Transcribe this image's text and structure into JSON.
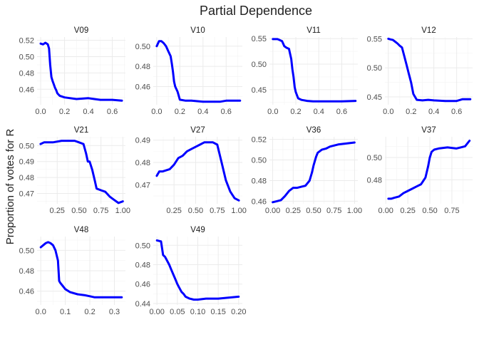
{
  "chart_data": {
    "type": "line",
    "title": "Partial Dependence",
    "ylabel": "Proportion of votes for R",
    "xlabel": "",
    "line_color": "#0000ff",
    "grid": true,
    "panels": [
      {
        "name": "V09",
        "xlim": [
          -0.03,
          0.71
        ],
        "ylim": [
          0.441,
          0.524
        ],
        "xticks": [
          0.0,
          0.2,
          0.4,
          0.6
        ],
        "xtick_labels": [
          "0.0",
          "0.2",
          "0.4",
          "0.6"
        ],
        "yticks": [
          0.46,
          0.48,
          0.5,
          0.52
        ],
        "ytick_labels": [
          "0.46",
          "0.48",
          "0.50",
          "0.52"
        ],
        "x": [
          0.0,
          0.02,
          0.04,
          0.06,
          0.07,
          0.08,
          0.09,
          0.1,
          0.11,
          0.12,
          0.13,
          0.14,
          0.16,
          0.2,
          0.3,
          0.4,
          0.45,
          0.5,
          0.6,
          0.68
        ],
        "y": [
          0.516,
          0.515,
          0.517,
          0.515,
          0.51,
          0.49,
          0.475,
          0.47,
          0.466,
          0.462,
          0.459,
          0.455,
          0.452,
          0.45,
          0.448,
          0.449,
          0.448,
          0.447,
          0.447,
          0.446
        ]
      },
      {
        "name": "V10",
        "xlim": [
          -0.03,
          0.74
        ],
        "ylim": [
          0.442,
          0.509
        ],
        "xticks": [
          0.0,
          0.2,
          0.4,
          0.6
        ],
        "xtick_labels": [
          "0.0",
          "0.2",
          "0.4",
          "0.6"
        ],
        "yticks": [
          0.46,
          0.48,
          0.5
        ],
        "ytick_labels": [
          "0.46",
          "0.48",
          "0.50"
        ],
        "x": [
          0.0,
          0.02,
          0.04,
          0.06,
          0.08,
          0.1,
          0.12,
          0.13,
          0.14,
          0.15,
          0.16,
          0.18,
          0.2,
          0.25,
          0.3,
          0.4,
          0.5,
          0.55,
          0.6,
          0.72
        ],
        "y": [
          0.5,
          0.505,
          0.505,
          0.503,
          0.5,
          0.495,
          0.49,
          0.483,
          0.475,
          0.465,
          0.46,
          0.455,
          0.447,
          0.446,
          0.446,
          0.445,
          0.445,
          0.445,
          0.446,
          0.446
        ]
      },
      {
        "name": "V11",
        "xlim": [
          -0.03,
          0.74
        ],
        "ylim": [
          0.4205,
          0.553
        ],
        "xticks": [
          0.0,
          0.2,
          0.4,
          0.6
        ],
        "xtick_labels": [
          "0.0",
          "0.2",
          "0.4",
          "0.6"
        ],
        "yticks": [
          0.45,
          0.5,
          0.55
        ],
        "ytick_labels": [
          "0.45",
          "0.50",
          "0.55"
        ],
        "x": [
          0.0,
          0.04,
          0.06,
          0.08,
          0.1,
          0.12,
          0.14,
          0.16,
          0.17,
          0.18,
          0.19,
          0.2,
          0.22,
          0.25,
          0.3,
          0.35,
          0.4,
          0.5,
          0.6,
          0.72
        ],
        "y": [
          0.549,
          0.549,
          0.547,
          0.545,
          0.535,
          0.532,
          0.53,
          0.51,
          0.49,
          0.475,
          0.455,
          0.445,
          0.433,
          0.43,
          0.428,
          0.427,
          0.427,
          0.427,
          0.427,
          0.428
        ]
      },
      {
        "name": "V12",
        "xlim": [
          -0.03,
          0.74
        ],
        "ylim": [
          0.4365,
          0.553
        ],
        "xticks": [
          0.0,
          0.2,
          0.4,
          0.6
        ],
        "xtick_labels": [
          "0.0",
          "0.2",
          "0.4",
          "0.6"
        ],
        "yticks": [
          0.45,
          0.5,
          0.55
        ],
        "ytick_labels": [
          "0.45",
          "0.50",
          "0.55"
        ],
        "x": [
          0.0,
          0.02,
          0.04,
          0.06,
          0.08,
          0.1,
          0.12,
          0.14,
          0.16,
          0.18,
          0.2,
          0.22,
          0.25,
          0.3,
          0.35,
          0.4,
          0.5,
          0.6,
          0.65,
          0.72
        ],
        "y": [
          0.55,
          0.549,
          0.548,
          0.545,
          0.542,
          0.538,
          0.535,
          0.52,
          0.505,
          0.49,
          0.475,
          0.455,
          0.445,
          0.444,
          0.445,
          0.444,
          0.443,
          0.443,
          0.446,
          0.446
        ]
      },
      {
        "name": "V21",
        "xlim": [
          0.02,
          1.03
        ],
        "ylim": [
          0.4635,
          0.5055
        ],
        "xticks": [
          0.25,
          0.5,
          0.75,
          1.0
        ],
        "xtick_labels": [
          "0.25",
          "0.50",
          "0.75",
          "1.00"
        ],
        "yticks": [
          0.47,
          0.48,
          0.49,
          0.5
        ],
        "ytick_labels": [
          "0.47",
          "0.48",
          "0.49",
          "0.50"
        ],
        "x": [
          0.06,
          0.1,
          0.2,
          0.3,
          0.4,
          0.45,
          0.5,
          0.55,
          0.58,
          0.6,
          0.62,
          0.65,
          0.68,
          0.7,
          0.75,
          0.8,
          0.85,
          0.9,
          0.95,
          1.0
        ],
        "y": [
          0.501,
          0.502,
          0.502,
          0.503,
          0.503,
          0.503,
          0.502,
          0.501,
          0.495,
          0.49,
          0.49,
          0.485,
          0.478,
          0.473,
          0.472,
          0.471,
          0.468,
          0.466,
          0.464,
          0.465
        ]
      },
      {
        "name": "V27",
        "xlim": [
          0.01,
          1.04
        ],
        "ylim": [
          0.4615,
          0.4915
        ],
        "xticks": [
          0.25,
          0.5,
          0.75,
          1.0
        ],
        "xtick_labels": [
          "0.25",
          "0.50",
          "0.75",
          "1.00"
        ],
        "yticks": [
          0.47,
          0.48,
          0.49
        ],
        "ytick_labels": [
          "0.47",
          "0.48",
          "0.49"
        ],
        "x": [
          0.05,
          0.08,
          0.12,
          0.2,
          0.25,
          0.3,
          0.35,
          0.4,
          0.45,
          0.5,
          0.55,
          0.6,
          0.65,
          0.7,
          0.75,
          0.8,
          0.85,
          0.9,
          0.95,
          1.0
        ],
        "y": [
          0.474,
          0.476,
          0.476,
          0.477,
          0.479,
          0.482,
          0.483,
          0.485,
          0.486,
          0.487,
          0.488,
          0.489,
          0.489,
          0.489,
          0.488,
          0.48,
          0.472,
          0.467,
          0.464,
          0.463
        ]
      },
      {
        "name": "V36",
        "xlim": [
          -0.04,
          1.04
        ],
        "ylim": [
          0.4575,
          0.5225
        ],
        "xticks": [
          0.0,
          0.25,
          0.5,
          0.75,
          1.0
        ],
        "xtick_labels": [
          "0.00",
          "0.25",
          "0.50",
          "0.75",
          "1.00"
        ],
        "yticks": [
          0.46,
          0.48,
          0.5,
          0.52
        ],
        "ytick_labels": [
          "0.46",
          "0.48",
          "0.50",
          "0.52"
        ],
        "x": [
          0.0,
          0.05,
          0.1,
          0.15,
          0.2,
          0.25,
          0.3,
          0.35,
          0.4,
          0.45,
          0.48,
          0.5,
          0.53,
          0.55,
          0.6,
          0.65,
          0.7,
          0.8,
          0.9,
          1.0
        ],
        "y": [
          0.459,
          0.46,
          0.461,
          0.465,
          0.47,
          0.473,
          0.473,
          0.474,
          0.475,
          0.48,
          0.488,
          0.495,
          0.503,
          0.507,
          0.51,
          0.511,
          0.513,
          0.515,
          0.516,
          0.517
        ]
      },
      {
        "name": "V37",
        "xlim": [
          -0.01,
          0.985
        ],
        "ylim": [
          0.4585,
          0.5185
        ],
        "xticks": [
          0.0,
          0.25,
          0.5,
          0.75
        ],
        "xtick_labels": [
          "0.00",
          "0.25",
          "0.50",
          "0.75"
        ],
        "yticks": [
          0.48,
          0.5
        ],
        "ytick_labels": [
          "0.48",
          "0.50"
        ],
        "x": [
          0.03,
          0.06,
          0.1,
          0.15,
          0.2,
          0.25,
          0.3,
          0.35,
          0.4,
          0.45,
          0.48,
          0.5,
          0.52,
          0.55,
          0.6,
          0.7,
          0.8,
          0.85,
          0.9,
          0.95
        ],
        "y": [
          0.463,
          0.463,
          0.464,
          0.465,
          0.468,
          0.47,
          0.472,
          0.474,
          0.476,
          0.482,
          0.492,
          0.5,
          0.505,
          0.507,
          0.508,
          0.509,
          0.508,
          0.509,
          0.51,
          0.515
        ]
      },
      {
        "name": "V48",
        "xlim": [
          -0.015,
          0.345
        ],
        "ylim": [
          0.4465,
          0.5135
        ],
        "xticks": [
          0.0,
          0.1,
          0.2,
          0.3
        ],
        "xtick_labels": [
          "0.0",
          "0.1",
          "0.2",
          "0.3"
        ],
        "yticks": [
          0.46,
          0.48,
          0.5
        ],
        "ytick_labels": [
          "0.46",
          "0.48",
          "0.50"
        ],
        "x": [
          0.0,
          0.01,
          0.02,
          0.03,
          0.04,
          0.05,
          0.06,
          0.07,
          0.075,
          0.08,
          0.09,
          0.1,
          0.12,
          0.15,
          0.18,
          0.2,
          0.22,
          0.25,
          0.3,
          0.33
        ],
        "y": [
          0.503,
          0.505,
          0.507,
          0.508,
          0.507,
          0.505,
          0.5,
          0.49,
          0.47,
          0.468,
          0.465,
          0.462,
          0.459,
          0.457,
          0.456,
          0.455,
          0.454,
          0.454,
          0.454,
          0.454
        ]
      },
      {
        "name": "V49",
        "xlim": [
          -0.009,
          0.209
        ],
        "ylim": [
          0.4385,
          0.509
        ],
        "xticks": [
          0.0,
          0.05,
          0.1,
          0.15,
          0.2
        ],
        "xtick_labels": [
          "0.00",
          "0.05",
          "0.10",
          "0.15",
          "0.20"
        ],
        "yticks": [
          0.44,
          0.46,
          0.48,
          0.5
        ],
        "ytick_labels": [
          "0.44",
          "0.46",
          "0.48",
          "0.50"
        ],
        "x": [
          0.0,
          0.01,
          0.015,
          0.02,
          0.025,
          0.03,
          0.035,
          0.04,
          0.045,
          0.05,
          0.055,
          0.06,
          0.065,
          0.07,
          0.08,
          0.09,
          0.1,
          0.12,
          0.15,
          0.2
        ],
        "y": [
          0.505,
          0.504,
          0.49,
          0.488,
          0.484,
          0.48,
          0.475,
          0.47,
          0.465,
          0.46,
          0.456,
          0.452,
          0.45,
          0.447,
          0.445,
          0.444,
          0.444,
          0.445,
          0.445,
          0.447
        ]
      }
    ]
  }
}
